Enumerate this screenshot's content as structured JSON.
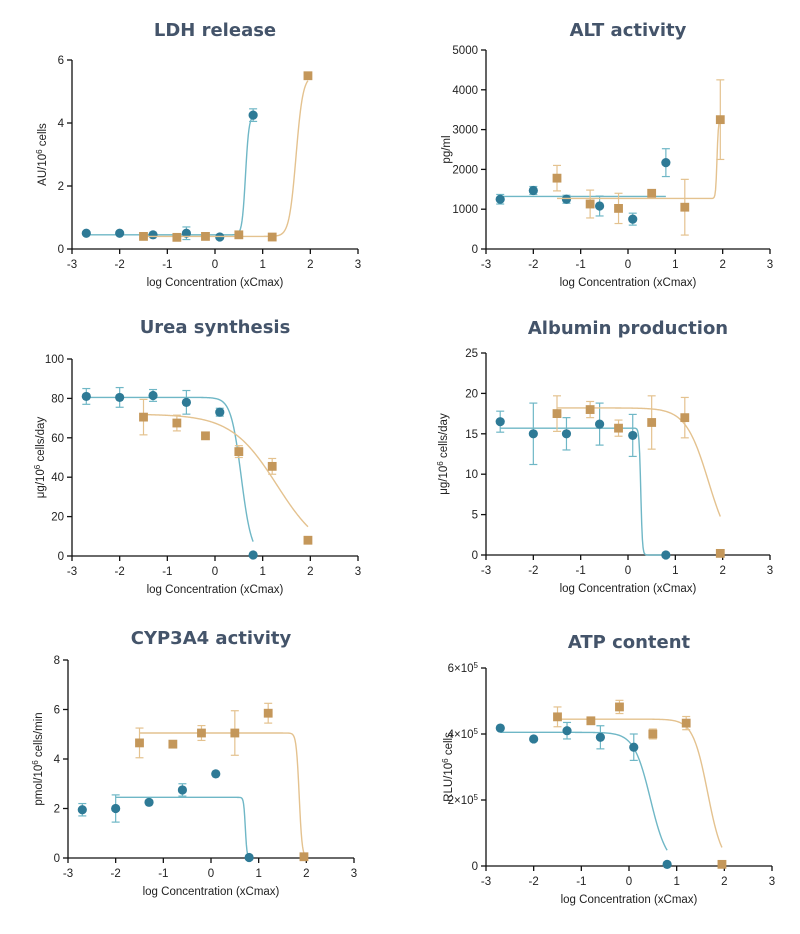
{
  "colors": {
    "blue": "#2e7a96",
    "tan": "#c4975a",
    "fit_blue": "#6fb7c6",
    "fit_tan": "#e4c28f",
    "title": "#44546a"
  },
  "legend": "none",
  "chart_data": [
    {
      "type": "scatter",
      "title": "LDH release",
      "xlabel": "log Concentration (xCmax)",
      "ylabel": {
        "prefix": "AU/10",
        "sup": "6",
        "suffix": " cells"
      },
      "xlim": [
        -3,
        3
      ],
      "ylim": [
        0,
        6
      ],
      "xticks": [
        -3,
        -2,
        -1,
        0,
        1,
        2,
        3
      ],
      "yticks": [
        {
          "v": 0,
          "label": "0"
        },
        {
          "v": 2,
          "label": "2"
        },
        {
          "v": 4,
          "label": "4"
        },
        {
          "v": 6,
          "label": "6"
        }
      ],
      "series": [
        {
          "color": "blue",
          "marker": "circle",
          "points": [
            {
              "x": -2.7,
              "y": 0.5
            },
            {
              "x": -2.0,
              "y": 0.5
            },
            {
              "x": -1.3,
              "y": 0.45
            },
            {
              "x": -0.6,
              "y": 0.5,
              "err": 0.2
            },
            {
              "x": 0.1,
              "y": 0.38
            },
            {
              "x": 0.8,
              "y": 4.25,
              "err": 0.2
            }
          ],
          "fit": {
            "bottom": 0.45,
            "top": 4.25,
            "x50": 0.64,
            "slope": 12,
            "xmax": 0.8
          }
        },
        {
          "color": "tan",
          "marker": "square",
          "points": [
            {
              "x": -1.5,
              "y": 0.4
            },
            {
              "x": -0.8,
              "y": 0.37
            },
            {
              "x": -0.2,
              "y": 0.4
            },
            {
              "x": 0.5,
              "y": 0.45
            },
            {
              "x": 1.2,
              "y": 0.38
            },
            {
              "x": 1.95,
              "y": 5.5
            }
          ],
          "fit": {
            "bottom": 0.4,
            "top": 5.5,
            "x50": 1.7,
            "slope": 6,
            "xmax": 1.95
          }
        }
      ]
    },
    {
      "type": "scatter",
      "title": "ALT activity",
      "xlabel": "log Concentration (xCmax)",
      "ylabel": {
        "prefix": "pg/ml",
        "sup": "",
        "suffix": ""
      },
      "xlim": [
        -3,
        3
      ],
      "ylim": [
        0,
        5000
      ],
      "xticks": [
        -3,
        -2,
        -1,
        0,
        1,
        2,
        3
      ],
      "yticks": [
        {
          "v": 0,
          "label": "0"
        },
        {
          "v": 1000,
          "label": "1000"
        },
        {
          "v": 2000,
          "label": "2000"
        },
        {
          "v": 3000,
          "label": "3000"
        },
        {
          "v": 4000,
          "label": "4000"
        },
        {
          "v": 5000,
          "label": "5000"
        }
      ],
      "series": [
        {
          "color": "blue",
          "marker": "circle",
          "points": [
            {
              "x": -2.7,
              "y": 1250,
              "err": 120
            },
            {
              "x": -2.0,
              "y": 1470,
              "err": 100
            },
            {
              "x": -1.3,
              "y": 1250,
              "err": 100
            },
            {
              "x": -0.6,
              "y": 1080,
              "err": 250
            },
            {
              "x": 0.1,
              "y": 750,
              "err": 150
            },
            {
              "x": 0.8,
              "y": 2170,
              "err": 350
            }
          ],
          "fit": {
            "flat": 1320,
            "xmin": -2.7,
            "xmax": 0.8
          }
        },
        {
          "color": "tan",
          "marker": "square",
          "points": [
            {
              "x": -1.5,
              "y": 1780,
              "err": 320
            },
            {
              "x": -0.8,
              "y": 1130,
              "err": 350
            },
            {
              "x": -0.2,
              "y": 1020,
              "err": 380
            },
            {
              "x": 0.5,
              "y": 1400,
              "err": 50
            },
            {
              "x": 1.2,
              "y": 1050,
              "err": 700
            },
            {
              "x": 1.95,
              "y": 3250,
              "err": 1000
            }
          ],
          "fit": {
            "bottom": 1270,
            "top": 3250,
            "x50": 1.88,
            "slope": 30,
            "xmax": 1.95
          }
        }
      ]
    },
    {
      "type": "scatter",
      "title": "Urea synthesis",
      "xlabel": "log Concentration (xCmax)",
      "ylabel": {
        "prefix": "μg/10",
        "sup": "6",
        "suffix": " cells/day"
      },
      "xlim": [
        -3,
        3
      ],
      "ylim": [
        0,
        100
      ],
      "xticks": [
        -3,
        -2,
        -1,
        0,
        1,
        2,
        3
      ],
      "yticks": [
        {
          "v": 0,
          "label": "0"
        },
        {
          "v": 20,
          "label": "20"
        },
        {
          "v": 40,
          "label": "40"
        },
        {
          "v": 60,
          "label": "60"
        },
        {
          "v": 80,
          "label": "80"
        },
        {
          "v": 100,
          "label": "100"
        }
      ],
      "series": [
        {
          "color": "blue",
          "marker": "circle",
          "points": [
            {
              "x": -2.7,
              "y": 81,
              "err": 4
            },
            {
              "x": -2.0,
              "y": 80.5,
              "err": 5
            },
            {
              "x": -1.3,
              "y": 81.5,
              "err": 3
            },
            {
              "x": -0.6,
              "y": 78,
              "err": 6
            },
            {
              "x": 0.1,
              "y": 73,
              "err": 2
            },
            {
              "x": 0.8,
              "y": 0.5
            }
          ],
          "fit": {
            "top": 80.5,
            "bottom": 0,
            "x50": 0.55,
            "slope": 4,
            "xmin": -2.7,
            "xmax": 0.8
          }
        },
        {
          "color": "tan",
          "marker": "square",
          "points": [
            {
              "x": -1.5,
              "y": 70.5,
              "err": 9
            },
            {
              "x": -0.8,
              "y": 67.5,
              "err": 4
            },
            {
              "x": -0.2,
              "y": 61
            },
            {
              "x": 0.5,
              "y": 53,
              "err": 3
            },
            {
              "x": 1.2,
              "y": 45.5,
              "err": 4
            },
            {
              "x": 1.95,
              "y": 8
            }
          ],
          "fit": {
            "top": 72,
            "bottom": 0,
            "x50": 1.3,
            "slope": 0.9,
            "xmin": -1.5,
            "xmax": 1.95
          }
        }
      ]
    },
    {
      "type": "scatter",
      "title": "Albumin production",
      "xlabel": "log Concentration (xCmax)",
      "ylabel": {
        "prefix": "μg/10",
        "sup": "6",
        "suffix": " cells/day"
      },
      "xlim": [
        -3,
        3
      ],
      "ylim": [
        0,
        25
      ],
      "xticks": [
        -3,
        -2,
        -1,
        0,
        1,
        2,
        3
      ],
      "yticks": [
        {
          "v": 0,
          "label": "0"
        },
        {
          "v": 5,
          "label": "5"
        },
        {
          "v": 10,
          "label": "10"
        },
        {
          "v": 15,
          "label": "15"
        },
        {
          "v": 20,
          "label": "20"
        },
        {
          "v": 25,
          "label": "25"
        }
      ],
      "series": [
        {
          "color": "blue",
          "marker": "circle",
          "points": [
            {
              "x": -2.7,
              "y": 16.5,
              "err": 1.3
            },
            {
              "x": -2.0,
              "y": 15.0,
              "err": 3.8
            },
            {
              "x": -1.3,
              "y": 15.0,
              "err": 2.0
            },
            {
              "x": -0.6,
              "y": 16.2,
              "err": 2.6
            },
            {
              "x": 0.1,
              "y": 14.8,
              "err": 2.6
            },
            {
              "x": 0.8,
              "y": 0
            }
          ],
          "fit": {
            "top": 15.7,
            "bottom": 0,
            "x50": 0.27,
            "slope": 25,
            "xmin": -2.7,
            "xmax": 0.8
          }
        },
        {
          "color": "tan",
          "marker": "square",
          "points": [
            {
              "x": -1.5,
              "y": 17.5,
              "err": 2.2
            },
            {
              "x": -0.8,
              "y": 18.0,
              "err": 1.0
            },
            {
              "x": -0.2,
              "y": 15.7,
              "err": 1.0
            },
            {
              "x": 0.5,
              "y": 16.4,
              "err": 3.3
            },
            {
              "x": 1.2,
              "y": 17.0,
              "err": 2.5
            },
            {
              "x": 1.95,
              "y": 0.2
            }
          ],
          "fit": {
            "top": 18.2,
            "bottom": 0,
            "x50": 1.7,
            "slope": 1.8,
            "xmin": -1.5,
            "xmax": 1.95
          }
        }
      ]
    },
    {
      "type": "scatter",
      "title": "CYP3A4 activity",
      "xlabel": "log Concentration (xCmax)",
      "ylabel": {
        "prefix": "pmol/10",
        "sup": "6",
        "suffix": " cells/min"
      },
      "xlim": [
        -3,
        3
      ],
      "ylim": [
        0,
        8
      ],
      "xticks": [
        -3,
        -2,
        -1,
        0,
        1,
        2,
        3
      ],
      "yticks": [
        {
          "v": 0,
          "label": "0"
        },
        {
          "v": 2,
          "label": "2"
        },
        {
          "v": 4,
          "label": "4"
        },
        {
          "v": 6,
          "label": "6"
        },
        {
          "v": 8,
          "label": "8"
        }
      ],
      "series": [
        {
          "color": "blue",
          "marker": "circle",
          "points": [
            {
              "x": -2.7,
              "y": 1.95,
              "err": 0.25
            },
            {
              "x": -2.0,
              "y": 2.0,
              "err": 0.55
            },
            {
              "x": -1.3,
              "y": 2.25
            },
            {
              "x": -0.6,
              "y": 2.75,
              "err": 0.25
            },
            {
              "x": 0.1,
              "y": 3.4
            },
            {
              "x": 0.8,
              "y": 0.02
            }
          ],
          "fit": {
            "top": 2.45,
            "bottom": 0,
            "x50": 0.72,
            "slope": 25,
            "xmin": -2.0,
            "xmax": 0.8
          }
        },
        {
          "color": "tan",
          "marker": "square",
          "points": [
            {
              "x": -1.5,
              "y": 4.65,
              "err": 0.6
            },
            {
              "x": -0.8,
              "y": 4.6
            },
            {
              "x": -0.2,
              "y": 5.05,
              "err": 0.3
            },
            {
              "x": 0.5,
              "y": 5.05,
              "err": 0.9
            },
            {
              "x": 1.2,
              "y": 5.85,
              "err": 0.4
            },
            {
              "x": 1.95,
              "y": 0.05
            }
          ],
          "fit": {
            "top": 5.05,
            "bottom": 0,
            "x50": 1.85,
            "slope": 14,
            "xmin": -1.5,
            "xmax": 1.95
          }
        }
      ]
    },
    {
      "type": "scatter",
      "title": "ATP content",
      "xlabel": "log Concentration (xCmax)",
      "ylabel": {
        "prefix": "RLU/10",
        "sup": "6",
        "suffix": " cells"
      },
      "xlim": [
        -3,
        3
      ],
      "ylim": [
        0,
        600000
      ],
      "xticks": [
        -3,
        -2,
        -1,
        0,
        1,
        2,
        3
      ],
      "yticks": [
        {
          "v": 0,
          "label": "0",
          "sup": ""
        },
        {
          "v": 200000,
          "label": "2×10",
          "sup": "5"
        },
        {
          "v": 400000,
          "label": "4×10",
          "sup": "5"
        },
        {
          "v": 600000,
          "label": "6×10",
          "sup": "5"
        }
      ],
      "series": [
        {
          "color": "blue",
          "marker": "circle",
          "points": [
            {
              "x": -2.7,
              "y": 418000
            },
            {
              "x": -2.0,
              "y": 385000
            },
            {
              "x": -1.3,
              "y": 410000,
              "err": 25000
            },
            {
              "x": -0.6,
              "y": 390000,
              "err": 35000
            },
            {
              "x": 0.1,
              "y": 360000,
              "err": 40000
            },
            {
              "x": 0.8,
              "y": 5000
            }
          ],
          "fit": {
            "top": 405000,
            "bottom": 0,
            "x50": 0.45,
            "slope": 2.5,
            "xmin": -2.7,
            "xmax": 0.8
          }
        },
        {
          "color": "tan",
          "marker": "square",
          "points": [
            {
              "x": -1.5,
              "y": 452000,
              "err": 30000
            },
            {
              "x": -0.8,
              "y": 440000
            },
            {
              "x": -0.2,
              "y": 482000,
              "err": 20000
            },
            {
              "x": 0.5,
              "y": 400000,
              "err": 15000
            },
            {
              "x": 1.2,
              "y": 433000,
              "err": 20000
            },
            {
              "x": 1.95,
              "y": 5000
            }
          ],
          "fit": {
            "top": 445000,
            "bottom": 0,
            "x50": 1.65,
            "slope": 2.8,
            "xmin": -1.5,
            "xmax": 1.95
          }
        }
      ]
    }
  ]
}
